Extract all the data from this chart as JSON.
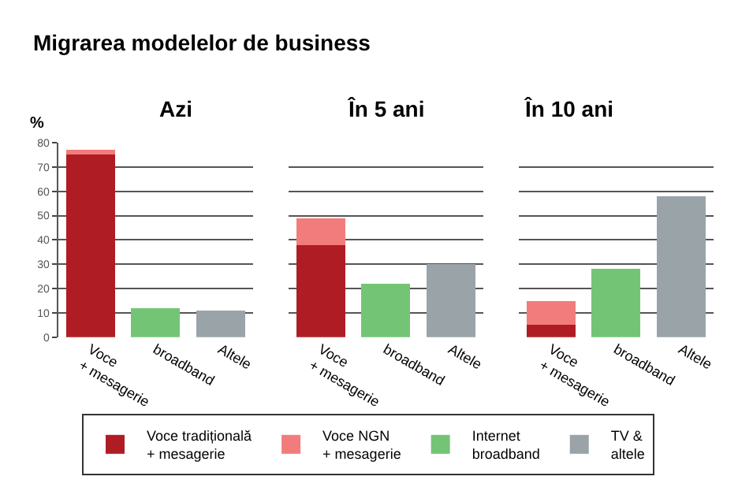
{
  "chart_data": [
    {
      "type": "bar",
      "title": "Azi",
      "annotations": [
        "Migrarea modelelor de business"
      ],
      "ylabel": "%",
      "categories": [
        "Voce\n+ mesagerie",
        "broadband",
        "Altele"
      ],
      "stacked": true,
      "ylim": [
        0,
        80
      ],
      "yticks": [
        0,
        10,
        20,
        30,
        40,
        50,
        60,
        70,
        80
      ],
      "grid": "y",
      "legend": "bottom",
      "series": [
        {
          "name": "Voce tradițională\n+ mesagerie",
          "color": "#b01c24",
          "values": [
            75,
            0,
            0
          ]
        },
        {
          "name": "Voce NGN\n+ mesagerie",
          "color": "#f27c7c",
          "values": [
            2,
            0,
            0
          ]
        },
        {
          "name": "Internet\nbroadband",
          "color": "#74c476",
          "values": [
            0,
            12,
            0
          ]
        },
        {
          "name": "TV &\naltele",
          "color": "#9aa3a8",
          "values": [
            0,
            0,
            11
          ]
        }
      ]
    },
    {
      "type": "bar",
      "title": "În 5 ani",
      "categories": [
        "Voce\n+ mesagerie",
        "broadband",
        "Altele"
      ],
      "stacked": true,
      "ylim": [
        0,
        80
      ],
      "yticks": [
        0,
        10,
        20,
        30,
        40,
        50,
        60,
        70,
        80
      ],
      "grid": "y",
      "tick_labels": "x",
      "series": [
        {
          "color": "#b01c24",
          "values": [
            38,
            0,
            0
          ]
        },
        {
          "color": "#f27c7c",
          "values": [
            11,
            0,
            0
          ]
        },
        {
          "color": "#74c476",
          "values": [
            0,
            22,
            0
          ]
        },
        {
          "color": "#9aa3a8",
          "values": [
            0,
            0,
            30
          ]
        }
      ]
    },
    {
      "type": "bar",
      "title": "În 10 ani",
      "categories": [
        "Voce\n+ mesagerie",
        "broadband",
        "Altele"
      ],
      "stacked": true,
      "ylim": [
        0,
        80
      ],
      "yticks": [
        0,
        10,
        20,
        30,
        40,
        50,
        60,
        70,
        80
      ],
      "grid": "y",
      "tick_labels": "x",
      "series": [
        {
          "color": "#b01c24",
          "values": [
            5,
            0,
            0
          ]
        },
        {
          "color": "#f27c7c",
          "values": [
            10,
            0,
            0
          ]
        },
        {
          "color": "#74c476",
          "values": [
            0,
            28,
            0
          ]
        },
        {
          "color": "#9aa3a8",
          "values": [
            0,
            0,
            58
          ]
        }
      ]
    }
  ]
}
